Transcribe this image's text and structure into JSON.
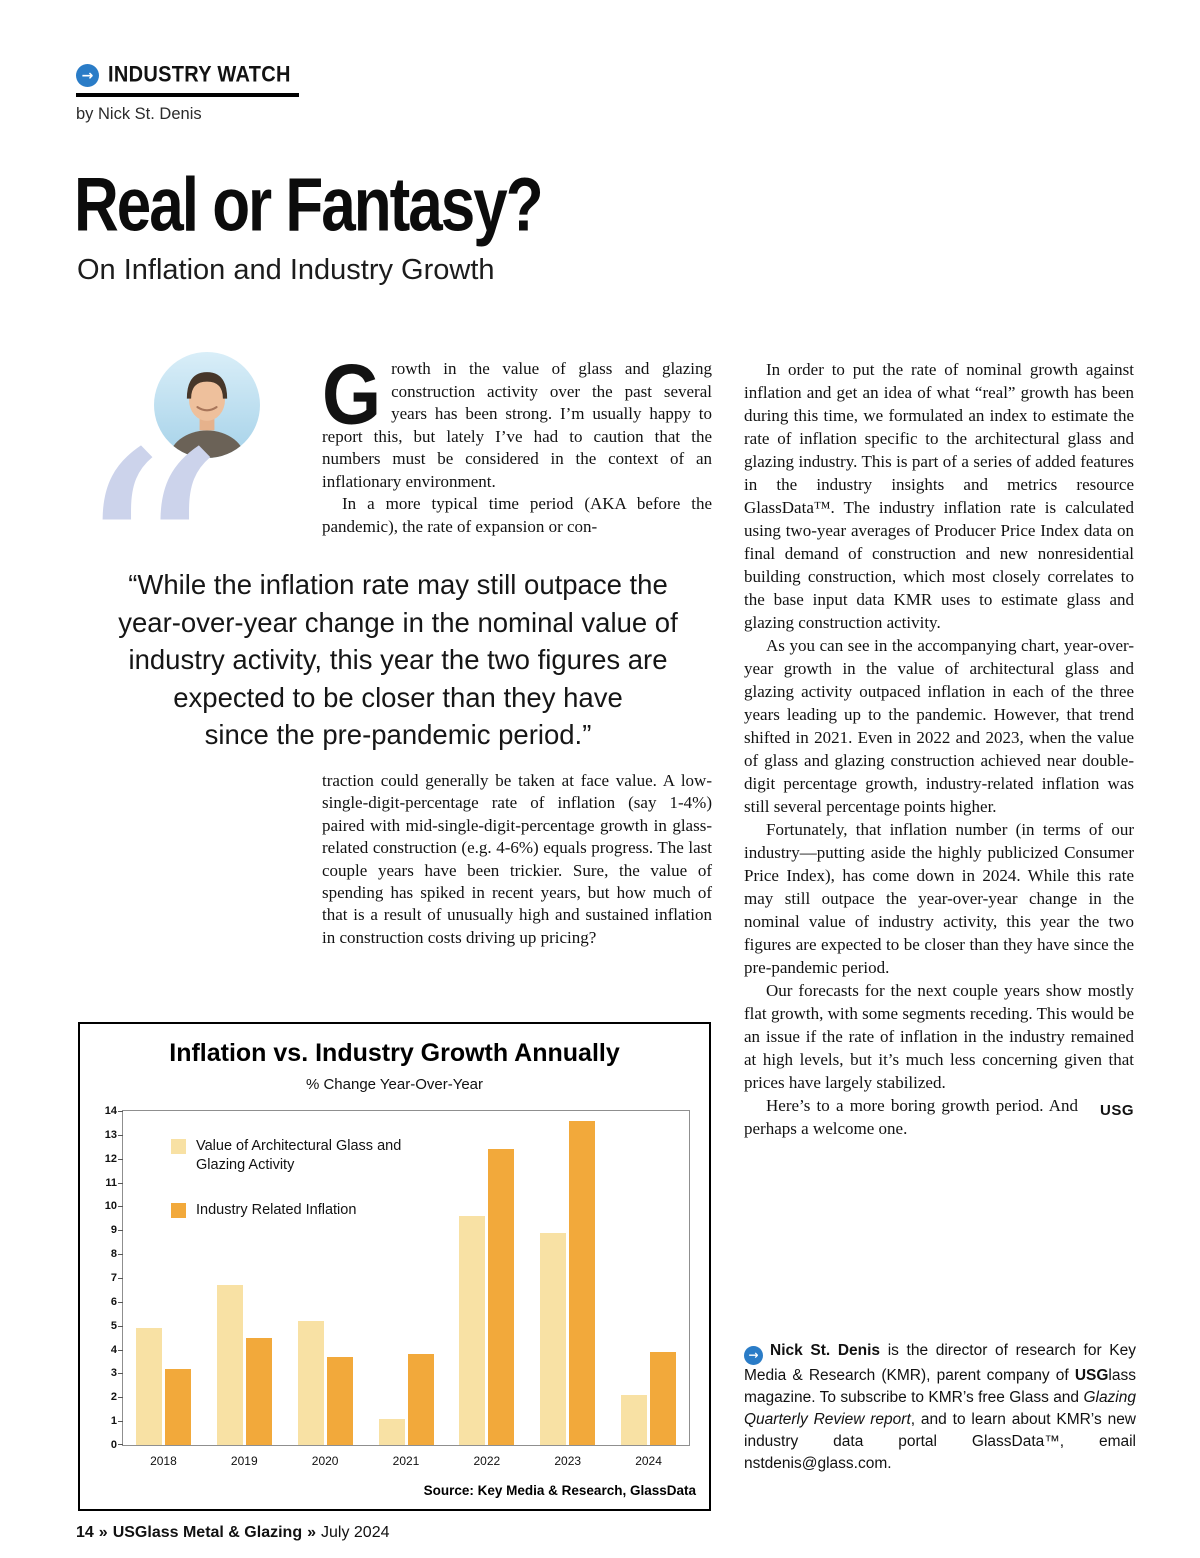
{
  "page": {
    "accent_color": "#2a7cc7",
    "quote_mark_color": "#ccd3eb"
  },
  "header": {
    "section_label": "INDUSTRY WATCH",
    "byline": "by Nick St. Denis",
    "title": "Real or Fantasy?",
    "subtitle": "On Inflation and Industry Growth"
  },
  "article": {
    "dropcap": "G",
    "para1": "rowth in the value of glass and glazing construction activity over the past several years has been strong. I’m usually happy to report this, but lately I’ve had to caution that the numbers must be considered in the context of an inflationary environment.",
    "para2": "In a more typical time period (AKA before the pandemic), the rate of expansion or con-",
    "pull_quote_lines": [
      "“While the inflation rate may still outpace the",
      "year-over-year change in the nominal value of",
      "industry activity, this year the two figures are",
      "expected to be closer than they have",
      "since the pre-pandemic period.”"
    ],
    "para3": "traction could generally be taken at face value. A low-single-digit-percentage rate of inflation (say 1-4%) paired with mid-single-digit-percentage growth in glass-related construction (e.g. 4-6%) equals progress. The last couple years have been trickier. Sure, the value of spending has spiked in recent years, but how much of that is a result of unusually high and sustained inflation in construction costs driving up pricing?",
    "col2": [
      "In order to put the rate of nominal growth against inflation and get an idea of what “real” growth has been during this time, we formulated an index to estimate the rate of inflation specific to the architectural glass and glazing industry. This is part of a series of added features in the industry insights and metrics resource GlassData™. The industry inflation rate is calculated using two-year averages of Producer Price Index data on final demand of construction and new nonresidential building construction, which most closely correlates to the base input data KMR uses to estimate glass and glazing construction activity.",
      "As you can see in the accompanying chart, year-over-year growth in the value of architectural glass and glazing activity outpaced inflation in each of the three years leading up to the pandemic. However, that trend shifted in 2021. Even in 2022 and 2023, when the value of glass and glazing construction achieved near double-digit percentage growth, industry-related inflation was still several percentage points higher.",
      "Fortunately, that inflation number (in terms of our industry—putting aside the highly publicized Consumer Price Index), has come down in 2024. While this rate may still outpace the year-over-year change in the nominal value of industry activity, this year the two figures are expected to be closer than they have since the pre-pandemic period.",
      "Our forecasts for the next couple years show mostly flat growth, with some segments receding. This would be an issue if the rate of inflation in the industry remained at high levels, but it’s much less concerning given that prices have largely stabilized.",
      "Here’s to a more boring growth period. And perhaps a welcome one."
    ],
    "endmark": "USG"
  },
  "bio": {
    "name": "Nick St. Denis",
    "seg1": " is the director of research for Key Media & Research (KMR), parent company of ",
    "bold1": "USG",
    "seg2": "lass magazine. To subscribe to KMR’s free Glass and ",
    "italic1": "Glazing Quarterly Review report",
    "seg3": ", and to learn about KMR’s new industry data portal GlassData™, email nstdenis@glass.com."
  },
  "chart_data": {
    "type": "bar",
    "title": "Inflation vs. Industry Growth Annually",
    "subtitle": "% Change Year-Over-Year",
    "categories": [
      "2018",
      "2019",
      "2020",
      "2021",
      "2022",
      "2023",
      "2024"
    ],
    "series": [
      {
        "name": "Value of Architectural Glass and Glazing Activity",
        "color": "#f8e1a4",
        "values": [
          4.9,
          6.7,
          5.2,
          1.1,
          9.6,
          8.9,
          2.1
        ]
      },
      {
        "name": "Industry Related Inflation",
        "color": "#f2a93b",
        "values": [
          3.2,
          4.5,
          3.7,
          3.8,
          12.4,
          13.6,
          3.9
        ]
      }
    ],
    "ylim": [
      0,
      14
    ],
    "ytick_step": 1,
    "grid": false,
    "legend_position": "upper-left",
    "source": "Source: Key Media & Research, GlassData"
  },
  "footer": {
    "page_number": "14",
    "sep": "»",
    "magazine": "USGlass Metal & Glazing",
    "issue": "July 2024"
  }
}
